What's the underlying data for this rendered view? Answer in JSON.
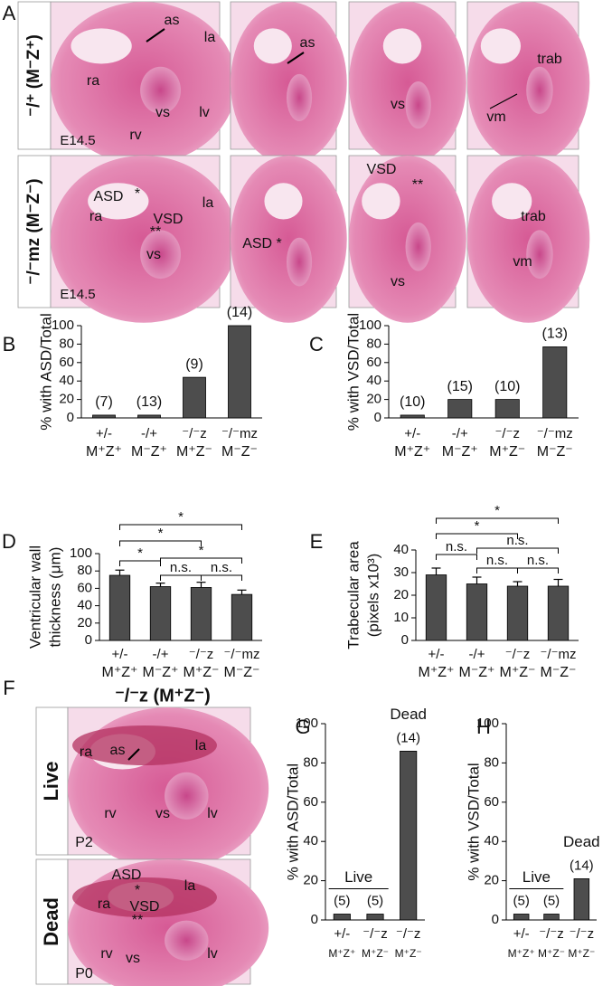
{
  "figure": {
    "panel_A": {
      "label": "A",
      "rows": [
        {
          "label": "⁻/⁺ (M⁻Z⁺)",
          "images": [
            [
              "as",
              "la",
              "ra",
              "vs",
              "lv",
              "rv",
              "E14.5"
            ],
            [
              "as"
            ],
            [
              "vs"
            ],
            [
              "trab",
              "vm"
            ]
          ]
        },
        {
          "label": "⁻/⁻mz (M⁻Z⁻)",
          "images": [
            [
              "ASD",
              "*",
              "la",
              "ra",
              "VSD",
              "**",
              "vs",
              "E14.5"
            ],
            [
              "ASD *"
            ],
            [
              "VSD",
              "**",
              "vs"
            ],
            [
              "trab",
              "vm"
            ]
          ]
        }
      ]
    },
    "panel_F": {
      "label": "F",
      "title": "⁻/⁻z (M⁺Z⁻)",
      "rows": [
        {
          "label": "Live",
          "labels": [
            "ra",
            "as",
            "la",
            "rv",
            "vs",
            "lv",
            "P2"
          ]
        },
        {
          "label": "Dead",
          "labels": [
            "ASD",
            "*",
            "la",
            "ra",
            "VSD",
            "**",
            "rv",
            "vs",
            "lv",
            "P0"
          ]
        }
      ]
    }
  },
  "chart_data": [
    {
      "type": "bar",
      "panel_label": "B",
      "ylabel": "% with ASD/Total",
      "color": "#4d4d4d",
      "categories": [
        "+/-",
        "-/+",
        "⁻/⁻z",
        "⁻/⁻mz"
      ],
      "category_sublabels": [
        "M⁺Z⁺",
        "M⁻Z⁺",
        "M⁺Z⁻",
        "M⁻Z⁻"
      ],
      "values": [
        3,
        3,
        44,
        100
      ],
      "annotations": [
        "(7)",
        "(13)",
        "(9)",
        "(14)"
      ],
      "ylim": [
        0,
        100
      ],
      "yticks": [
        0,
        20,
        40,
        60,
        80,
        100
      ]
    },
    {
      "type": "bar",
      "panel_label": "C",
      "ylabel": "% with VSD/Total",
      "color": "#4d4d4d",
      "categories": [
        "+/-",
        "-/+",
        "⁻/⁻z",
        "⁻/⁻mz"
      ],
      "category_sublabels": [
        "M⁺Z⁺",
        "M⁻Z⁺",
        "M⁺Z⁻",
        "M⁻Z⁻"
      ],
      "values": [
        3,
        20,
        20,
        77
      ],
      "annotations": [
        "(10)",
        "(15)",
        "(10)",
        "(13)"
      ],
      "ylim": [
        0,
        100
      ],
      "yticks": [
        0,
        20,
        40,
        60,
        80,
        100
      ]
    },
    {
      "type": "bar",
      "panel_label": "D",
      "ylabel": [
        "Ventricular wall",
        "thickness (μm)"
      ],
      "color": "#4d4d4d",
      "categories": [
        "+/-",
        "-/+",
        "⁻/⁻z",
        "⁻/⁻mz"
      ],
      "category_sublabels": [
        "M⁺Z⁺",
        "M⁻Z⁺",
        "M⁺Z⁻",
        "M⁻Z⁻"
      ],
      "values": [
        75,
        62,
        61,
        53
      ],
      "errors": [
        6,
        4,
        6,
        5
      ],
      "brackets": [
        {
          "from": 0,
          "to": 3,
          "label": "*"
        },
        {
          "from": 0,
          "to": 2,
          "label": "*"
        },
        {
          "from": 0,
          "to": 1,
          "label": "*"
        },
        {
          "from": 1,
          "to": 3,
          "label": "*"
        },
        {
          "from": 1,
          "to": 2,
          "label": "n.s."
        },
        {
          "from": 2,
          "to": 3,
          "label": "n.s."
        }
      ],
      "ylim": [
        0,
        100
      ],
      "yticks": [
        0,
        20,
        40,
        60,
        80,
        100
      ]
    },
    {
      "type": "bar",
      "panel_label": "E",
      "ylabel": [
        "Trabecular area",
        "(pixels x10³)"
      ],
      "color": "#4d4d4d",
      "categories": [
        "+/-",
        "-/+",
        "⁻/⁻z",
        "⁻/⁻mz"
      ],
      "category_sublabels": [
        "M⁺Z⁺",
        "M⁻Z⁺",
        "M⁺Z⁻",
        "M⁻Z⁻"
      ],
      "values": [
        29,
        25,
        24,
        24
      ],
      "errors": [
        3,
        3,
        2,
        3
      ],
      "brackets": [
        {
          "from": 0,
          "to": 3,
          "label": "*"
        },
        {
          "from": 0,
          "to": 2,
          "label": "*"
        },
        {
          "from": 0,
          "to": 1,
          "label": "n.s."
        },
        {
          "from": 1,
          "to": 3,
          "label": "n.s."
        },
        {
          "from": 1,
          "to": 2,
          "label": "n.s."
        },
        {
          "from": 2,
          "to": 3,
          "label": "n.s."
        }
      ],
      "ylim": [
        0,
        40
      ],
      "yticks": [
        0,
        10,
        20,
        30,
        40
      ]
    },
    {
      "type": "bar",
      "panel_label": "G",
      "ylabel": "% with ASD/Total",
      "color": "#4d4d4d",
      "categories": [
        "+/-",
        "⁻/⁻z",
        "⁻/⁻z"
      ],
      "category_sublabels": [
        "M⁺Z⁺",
        "M⁺Z⁻",
        "M⁺Z⁻"
      ],
      "values": [
        3,
        3,
        86
      ],
      "annotations": [
        "(5)",
        "(5)",
        "(14)"
      ],
      "groups": [
        {
          "label": "Live",
          "from": 0,
          "to": 1
        },
        {
          "label": "Dead",
          "from": 2,
          "to": 2
        }
      ],
      "ylim": [
        0,
        100
      ],
      "yticks": [
        0,
        20,
        40,
        60,
        80,
        100
      ]
    },
    {
      "type": "bar",
      "panel_label": "H",
      "ylabel": "% with VSD/Total",
      "color": "#4d4d4d",
      "categories": [
        "+/-",
        "⁻/⁻z",
        "⁻/⁻z"
      ],
      "category_sublabels": [
        "M⁺Z⁺",
        "M⁺Z⁻",
        "M⁺Z⁻"
      ],
      "values": [
        3,
        3,
        21
      ],
      "annotations": [
        "(5)",
        "(5)",
        "(14)"
      ],
      "groups": [
        {
          "label": "Live",
          "from": 0,
          "to": 1
        },
        {
          "label": "Dead",
          "from": 2,
          "to": 2
        }
      ],
      "ylim": [
        0,
        100
      ],
      "yticks": [
        0,
        20,
        40,
        60,
        80,
        100
      ]
    }
  ]
}
